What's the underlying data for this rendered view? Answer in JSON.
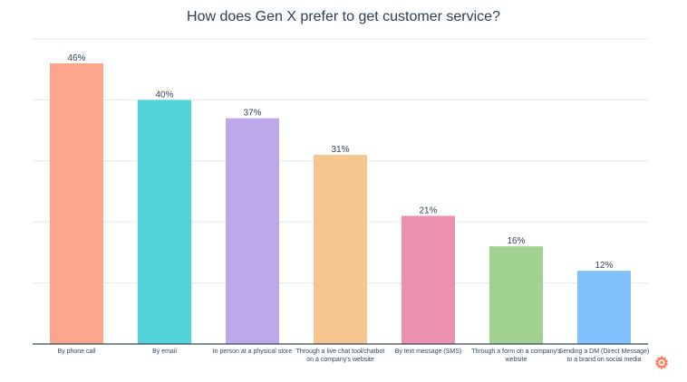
{
  "chart_data": {
    "type": "bar",
    "title": "How does Gen X prefer to get customer service?",
    "categories": [
      "By phone call",
      "By email",
      "In person at a physical store",
      "Through a live chat tool/chatbot on a company's website",
      "By text message (SMS)",
      "Through a form on a company's website",
      "Sending a DM (Direct Message) to a brand on social media"
    ],
    "values": [
      46,
      40,
      37,
      31,
      21,
      16,
      12
    ],
    "data_labels": [
      "46%",
      "40%",
      "37%",
      "31%",
      "21%",
      "16%",
      "12%"
    ],
    "colors": [
      "#fea58e",
      "#51d3d9",
      "#bda9ea",
      "#f5c78e",
      "#ea90b1",
      "#a2d28f",
      "#81c1fd"
    ],
    "xlabel": "",
    "ylabel": "",
    "ylim": [
      0,
      50
    ],
    "grid": true,
    "legend": "none"
  },
  "brand": {
    "logo": "hubspot-logo",
    "color": "#ff7a59"
  }
}
